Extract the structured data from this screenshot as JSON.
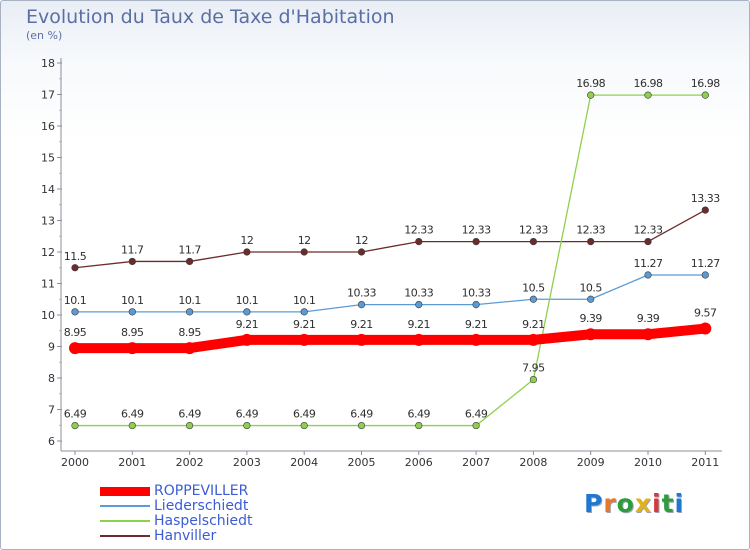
{
  "title": "Evolution du Taux de Taxe d'Habitation",
  "subtitle": "(en %)",
  "chart_data": {
    "type": "line",
    "title": "Evolution du Taux de Taxe d'Habitation",
    "ylabel": "(en %)",
    "xlabel": "",
    "ylim": [
      6,
      18
    ],
    "y_ticks": [
      "6",
      "7",
      "8",
      "9",
      "10",
      "11",
      "12",
      "13",
      "14",
      "15",
      "16",
      "17",
      "18"
    ],
    "categories": [
      "2000",
      "2001",
      "2002",
      "2003",
      "2004",
      "2005",
      "2006",
      "2007",
      "2008",
      "2009",
      "2010",
      "2011"
    ],
    "series": [
      {
        "name": "Hanviller",
        "color": "#6d2b2b",
        "values": [
          11.5,
          11.7,
          11.7,
          12,
          12,
          12,
          12.33,
          12.33,
          12.33,
          12.33,
          12.33,
          13.33
        ],
        "labels": [
          "11.5",
          "11.7",
          "11.7",
          "12",
          "12",
          "12",
          "12.33",
          "12.33",
          "12.33",
          "12.33",
          "12.33",
          "13.33"
        ]
      },
      {
        "name": "Liederschiedt",
        "color": "#5b9bd5",
        "values": [
          10.1,
          10.1,
          10.1,
          10.1,
          10.1,
          10.33,
          10.33,
          10.33,
          10.5,
          10.5,
          11.27,
          11.27
        ],
        "labels": [
          "10.1",
          "10.1",
          "10.1",
          "10.1",
          "10.1",
          "10.33",
          "10.33",
          "10.33",
          "10.5",
          "10.5",
          "11.27",
          "11.27"
        ]
      },
      {
        "name": "Haspelschiedt",
        "color": "#8ed04c",
        "values": [
          6.49,
          6.49,
          6.49,
          6.49,
          6.49,
          6.49,
          6.49,
          6.49,
          7.95,
          16.98,
          16.98,
          16.98
        ],
        "labels": [
          "6.49",
          "6.49",
          "6.49",
          "6.49",
          "6.49",
          "6.49",
          "6.49",
          "6.49",
          "7.95",
          "16.98",
          "16.98",
          "16.98"
        ]
      },
      {
        "name": "ROPPEVILLER",
        "color": "#ff0000",
        "values": [
          8.95,
          8.95,
          8.95,
          9.21,
          9.21,
          9.21,
          9.21,
          9.21,
          9.21,
          9.39,
          9.39,
          9.57
        ],
        "labels": [
          "8.95",
          "8.95",
          "8.95",
          "9.21",
          "9.21",
          "9.21",
          "9.21",
          "9.21",
          "9.21",
          "9.39",
          "9.39",
          "9.57"
        ]
      }
    ]
  },
  "legend": [
    {
      "name": "ROPPEVILLER",
      "color": "#ff0000"
    },
    {
      "name": "Liederschiedt",
      "color": "#5b9bd5"
    },
    {
      "name": "Haspelschiedt",
      "color": "#8ed04c"
    },
    {
      "name": "Hanviller",
      "color": "#6d2b2b"
    }
  ],
  "logo": {
    "letters": [
      "P",
      "r",
      "o",
      "x",
      "i",
      "t",
      "i"
    ],
    "colors": [
      "#1f77d0",
      "#e8762b",
      "#2e9c3c",
      "#e0b21b",
      "#d23b3b",
      "#2e9c3c",
      "#1f77d0"
    ]
  }
}
